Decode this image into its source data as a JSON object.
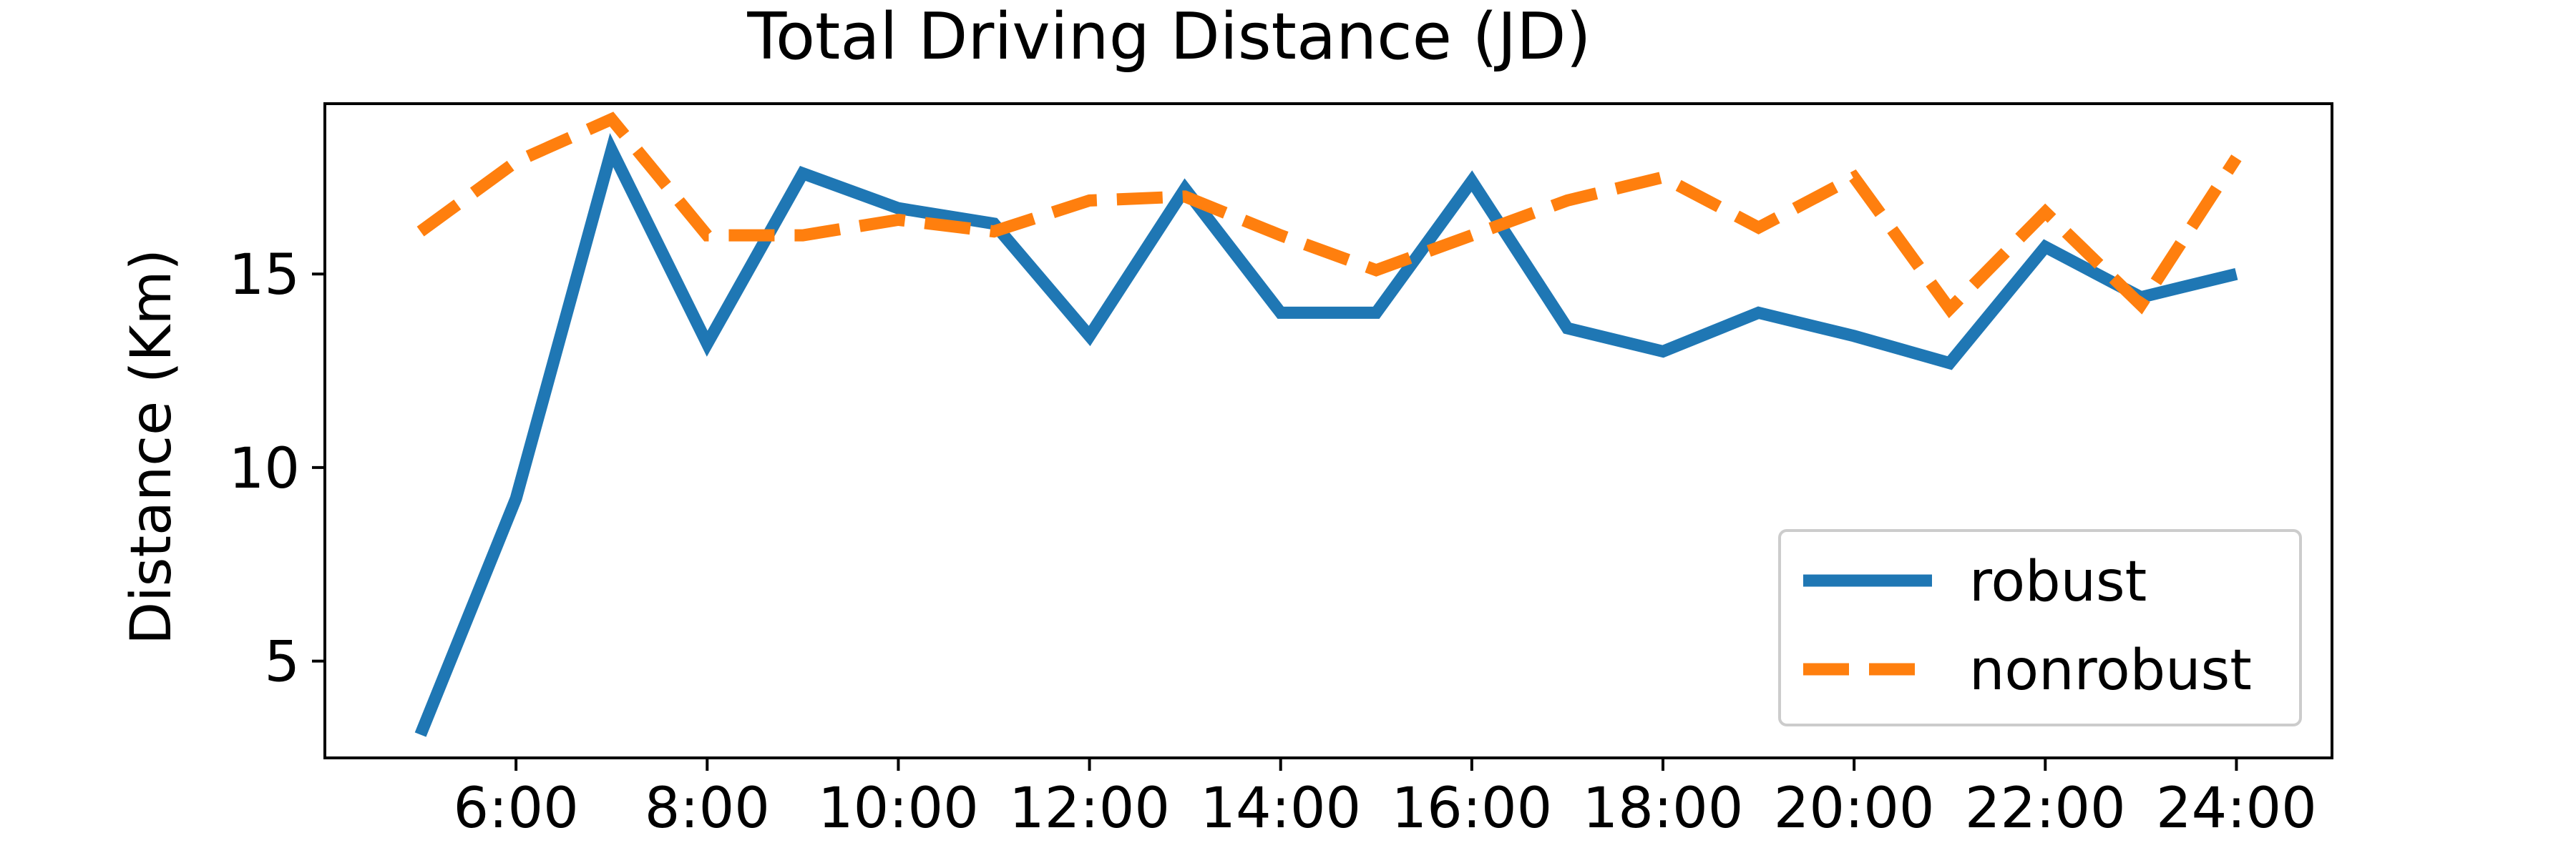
{
  "chart_data": {
    "type": "line",
    "title": "Total Driving Distance (JD)",
    "xlabel": "",
    "ylabel": "Distance (Km)",
    "x": [
      5,
      6,
      7,
      8,
      9,
      10,
      11,
      12,
      13,
      14,
      15,
      16,
      17,
      18,
      19,
      20,
      21,
      22,
      23,
      24
    ],
    "xlim": [
      4.0,
      25.0
    ],
    "ylim": [
      2.5,
      19.4
    ],
    "xticks": [
      6,
      8,
      10,
      12,
      14,
      16,
      18,
      20,
      22,
      24
    ],
    "xtick_labels": [
      "6:00",
      "8:00",
      "10:00",
      "12:00",
      "14:00",
      "16:00",
      "18:00",
      "20:00",
      "22:00",
      "24:00"
    ],
    "yticks": [
      5,
      10,
      15
    ],
    "ytick_labels": [
      "5",
      "10",
      "15"
    ],
    "grid": false,
    "legend_position": "lower-right",
    "series": [
      {
        "name": "robust",
        "color": "#1f77b4",
        "style": "solid",
        "values": [
          3.1,
          9.2,
          18.2,
          13.2,
          17.6,
          16.7,
          16.3,
          13.4,
          17.2,
          14.0,
          14.0,
          17.4,
          13.6,
          13.0,
          14.0,
          13.4,
          12.7,
          15.7,
          14.4,
          15.0
        ]
      },
      {
        "name": "nonrobust",
        "color": "#ff7f0e",
        "style": "dashed",
        "values": [
          16.1,
          17.9,
          19.0,
          16.0,
          16.0,
          16.4,
          16.1,
          16.9,
          17.0,
          16.0,
          15.1,
          16.0,
          16.9,
          17.5,
          16.2,
          17.5,
          14.1,
          16.6,
          14.2,
          18.0
        ]
      }
    ]
  }
}
